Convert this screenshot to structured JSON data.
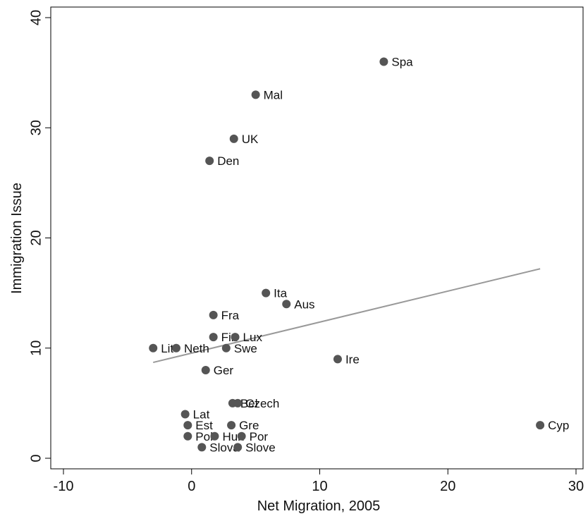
{
  "chart_data": {
    "type": "scatter",
    "xlabel": "Net Migration, 2005",
    "ylabel": "Immigration Issue",
    "xlim": [
      -10,
      30
    ],
    "ylim": [
      0,
      40
    ],
    "x_ticks": [
      -10,
      0,
      10,
      20,
      30
    ],
    "y_ticks": [
      0,
      10,
      20,
      30,
      40
    ],
    "grid": false,
    "point_color": "#555555",
    "fit_line_color": "#999999",
    "points": [
      {
        "label": "Spa",
        "x": 15.0,
        "y": 36
      },
      {
        "label": "Mal",
        "x": 5.0,
        "y": 33
      },
      {
        "label": "UK",
        "x": 3.3,
        "y": 29
      },
      {
        "label": "Den",
        "x": 1.4,
        "y": 27
      },
      {
        "label": "Ita",
        "x": 5.8,
        "y": 15
      },
      {
        "label": "Aus",
        "x": 7.4,
        "y": 14
      },
      {
        "label": "Fra",
        "x": 1.7,
        "y": 13
      },
      {
        "label": "Fin",
        "x": 1.7,
        "y": 11
      },
      {
        "label": "Lux",
        "x": 3.4,
        "y": 11
      },
      {
        "label": "Lit",
        "x": -3.0,
        "y": 10
      },
      {
        "label": "Neth",
        "x": -1.2,
        "y": 10
      },
      {
        "label": "Swe",
        "x": 2.7,
        "y": 10
      },
      {
        "label": "Ire",
        "x": 11.4,
        "y": 9
      },
      {
        "label": "Ger",
        "x": 1.1,
        "y": 8
      },
      {
        "label": "Bel",
        "x": 3.2,
        "y": 5
      },
      {
        "label": "Czech",
        "x": 3.6,
        "y": 5
      },
      {
        "label": "Lat",
        "x": -0.5,
        "y": 4
      },
      {
        "label": "Est",
        "x": -0.3,
        "y": 3
      },
      {
        "label": "Gre",
        "x": 3.1,
        "y": 3
      },
      {
        "label": "Cyp",
        "x": 27.2,
        "y": 3
      },
      {
        "label": "Pol",
        "x": -0.3,
        "y": 2
      },
      {
        "label": "Hun",
        "x": 1.8,
        "y": 2
      },
      {
        "label": "Por",
        "x": 3.9,
        "y": 2
      },
      {
        "label": "Slova",
        "x": 0.8,
        "y": 1
      },
      {
        "label": "Slove",
        "x": 3.6,
        "y": 1
      }
    ],
    "fit_line": {
      "x": [
        -3.0,
        27.2
      ],
      "y": [
        8.7,
        17.2
      ]
    }
  }
}
